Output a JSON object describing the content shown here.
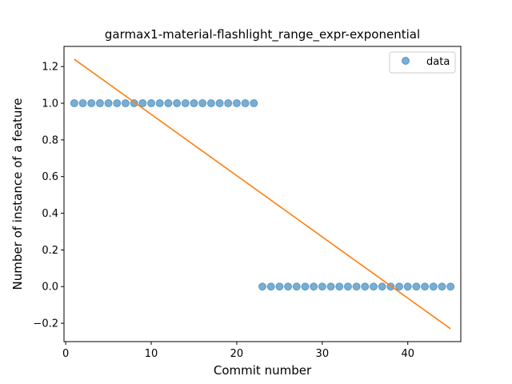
{
  "chart_data": {
    "type": "scatter",
    "title": "garmax1-material-flashlight_range_expr-exponential",
    "xlabel": "Commit number",
    "ylabel": "Number of instance of a feature",
    "xlim": [
      -0.2,
      46.2
    ],
    "ylim": [
      -0.3,
      1.31
    ],
    "x_ticks": [
      0,
      10,
      20,
      30,
      40
    ],
    "y_ticks": [
      -0.2,
      0.0,
      0.2,
      0.4,
      0.6,
      0.8,
      1.0,
      1.2
    ],
    "y_tick_labels": [
      "−0.2",
      "0.0",
      "0.2",
      "0.4",
      "0.6",
      "0.8",
      "1.0",
      "1.2"
    ],
    "grid": false,
    "legend": {
      "position": "upper-right",
      "entries": [
        "data"
      ]
    },
    "series": [
      {
        "name": "data",
        "kind": "scatter",
        "color": "#1f77b4",
        "x": [
          1,
          2,
          3,
          4,
          5,
          6,
          7,
          8,
          9,
          10,
          11,
          12,
          13,
          14,
          15,
          16,
          17,
          18,
          19,
          20,
          21,
          22,
          23,
          24,
          25,
          26,
          27,
          28,
          29,
          30,
          31,
          32,
          33,
          34,
          35,
          36,
          37,
          38,
          39,
          40,
          41,
          42,
          43,
          44,
          45
        ],
        "y": [
          1,
          1,
          1,
          1,
          1,
          1,
          1,
          1,
          1,
          1,
          1,
          1,
          1,
          1,
          1,
          1,
          1,
          1,
          1,
          1,
          1,
          1,
          0,
          0,
          0,
          0,
          0,
          0,
          0,
          0,
          0,
          0,
          0,
          0,
          0,
          0,
          0,
          0,
          0,
          0,
          0,
          0,
          0,
          0,
          0
        ]
      },
      {
        "kind": "line",
        "color": "#ff7f0e",
        "x": [
          1,
          45
        ],
        "y": [
          1.24,
          -0.23
        ]
      }
    ]
  }
}
